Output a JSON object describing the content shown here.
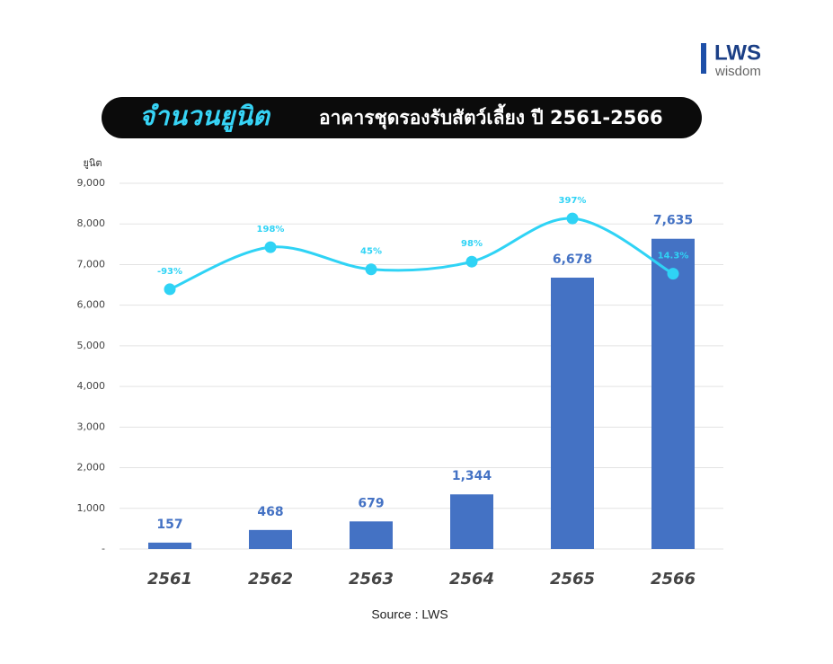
{
  "logo": {
    "brand": "LWS",
    "sub": "wisdom"
  },
  "chart_data": {
    "type": "bar",
    "title_highlight": "จำนวนยูนิต",
    "title": "อาคารชุดรองรับสัตว์เลี้ยง ปี 2561-2566",
    "y_label": "ยูนิต",
    "categories": [
      "2561",
      "2562",
      "2563",
      "2564",
      "2565",
      "2566"
    ],
    "series": [
      {
        "type": "bar",
        "color": "#4472c4",
        "values": [
          157,
          468,
          679,
          1344,
          6678,
          7635
        ],
        "value_labels": [
          "157",
          "468",
          "679",
          "1,344",
          "6,678",
          "7,635"
        ]
      },
      {
        "type": "line",
        "axis": "y2",
        "color": "#2fd3f5",
        "values": [
          -93,
          198,
          45,
          98,
          397,
          14.3
        ],
        "value_labels": [
          "-93%",
          "198%",
          "45%",
          "98%",
          "397%",
          "14.3%"
        ]
      }
    ],
    "ylim": [
      0,
      9000
    ],
    "yticks": [
      {
        "value": 0,
        "label": "-"
      },
      {
        "value": 1000,
        "label": "1,000"
      },
      {
        "value": 2000,
        "label": "2,000"
      },
      {
        "value": 3000,
        "label": "3,000"
      },
      {
        "value": 4000,
        "label": "4,000"
      },
      {
        "value": 5000,
        "label": "5,000"
      },
      {
        "value": 6000,
        "label": "6,000"
      },
      {
        "value": 7000,
        "label": "7,000"
      },
      {
        "value": 8000,
        "label": "8,000"
      },
      {
        "value": 9000,
        "label": "9,000"
      }
    ],
    "y2lim": [
      -1890,
      640
    ],
    "grid": true,
    "source": "Source : LWS"
  }
}
